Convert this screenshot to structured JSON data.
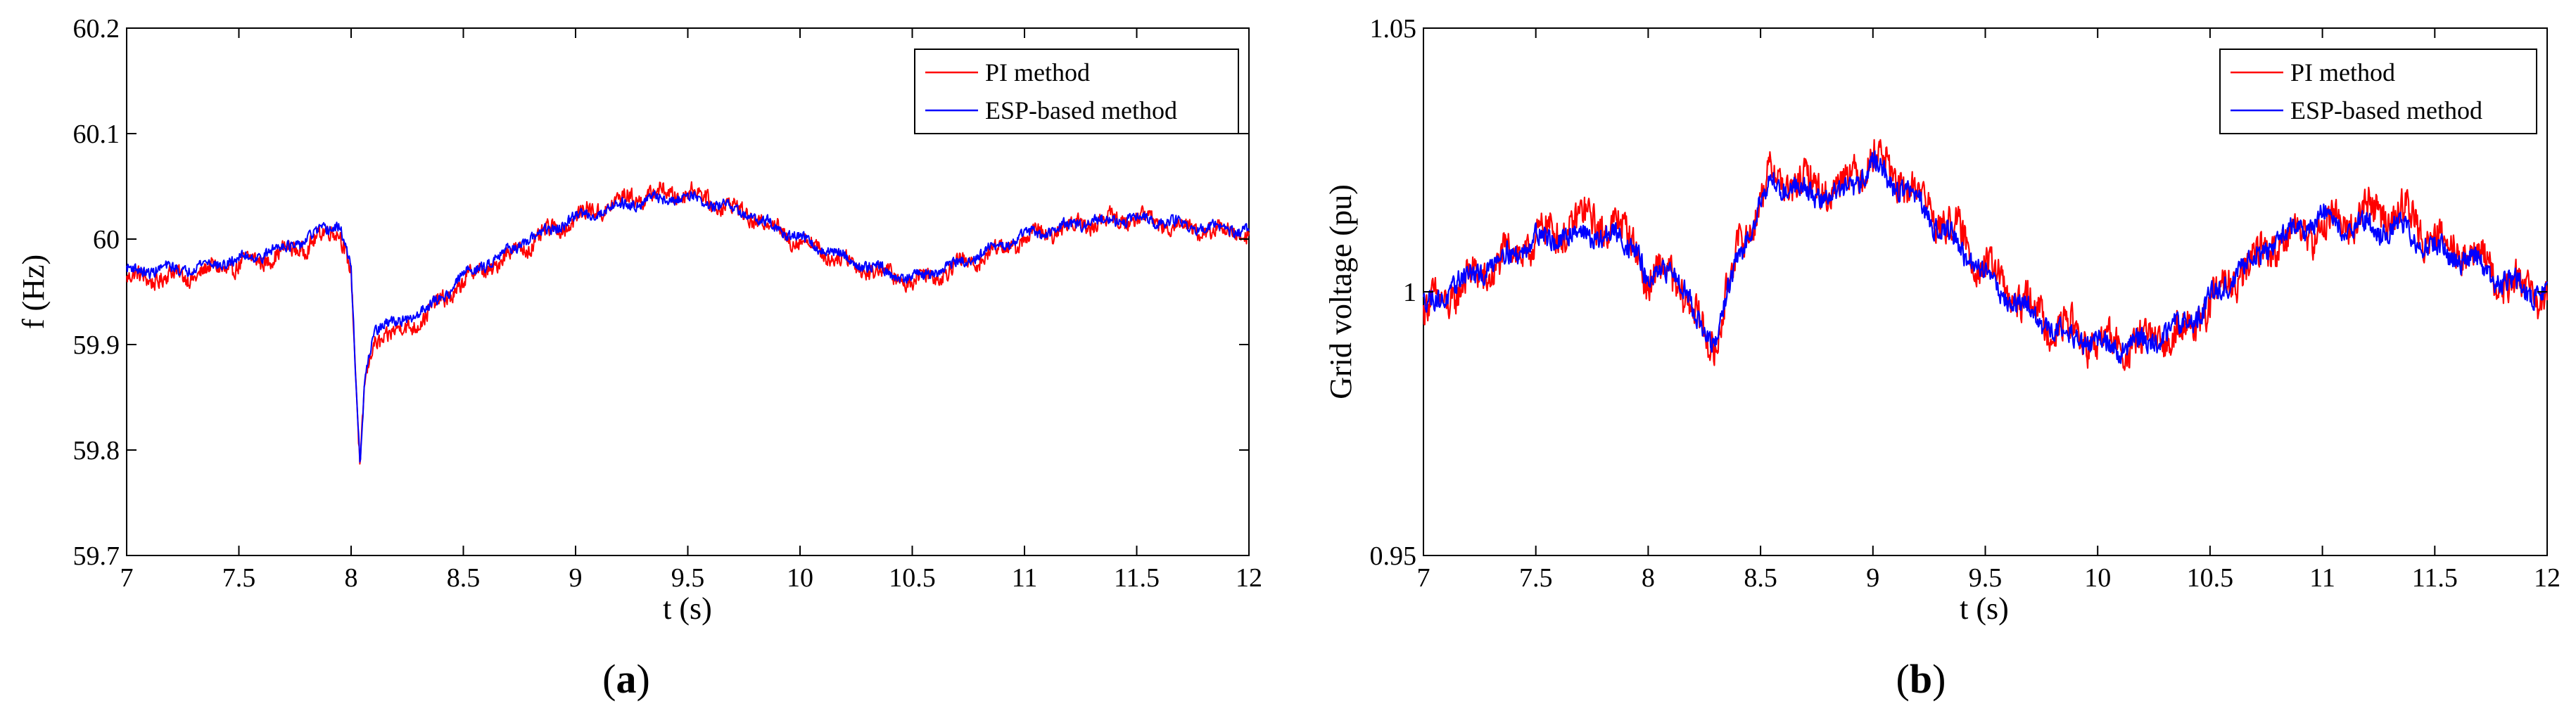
{
  "figure": {
    "panel_a": {
      "caption_open": "(",
      "caption_letter": "a",
      "caption_close": ")"
    },
    "panel_b": {
      "caption_open": "(",
      "caption_letter": "b",
      "caption_close": ")"
    }
  },
  "chart_data": [
    {
      "type": "line",
      "panel": "a",
      "title": "",
      "xlabel": "t (s)",
      "ylabel": "f (Hz)",
      "xlim": [
        7,
        12
      ],
      "ylim": [
        59.7,
        60.2
      ],
      "xticks": [
        7,
        7.5,
        8,
        8.5,
        9,
        9.5,
        10,
        10.5,
        11,
        11.5,
        12
      ],
      "xtick_labels": [
        "7",
        "7.5",
        "8",
        "8.5",
        "9",
        "9.5",
        "10",
        "10.5",
        "11",
        "11.5",
        "12"
      ],
      "yticks": [
        59.7,
        59.8,
        59.9,
        60,
        60.1,
        60.2
      ],
      "ytick_labels": [
        "59.7",
        "59.8",
        "59.9",
        "60",
        "60.1",
        "60.2"
      ],
      "grid": false,
      "legend_position": "top-right",
      "series": [
        {
          "name": "PI method",
          "color": "#ff0000",
          "x": [
            7.0,
            7.25,
            7.5,
            7.75,
            7.95,
            8.0,
            8.02,
            8.04,
            8.06,
            8.1,
            8.2,
            8.35,
            8.5,
            8.75,
            9.0,
            9.25,
            9.5,
            9.75,
            10.0,
            10.25,
            10.5,
            10.75,
            11.0,
            11.25,
            11.5,
            11.75,
            12.0
          ],
          "y": [
            59.962,
            59.965,
            59.975,
            59.99,
            60.01,
            59.97,
            59.87,
            59.775,
            59.86,
            59.905,
            59.91,
            59.93,
            59.96,
            59.99,
            60.02,
            60.04,
            60.045,
            60.025,
            59.998,
            59.975,
            59.96,
            59.978,
            60.0,
            60.015,
            60.02,
            60.01,
            60.005
          ],
          "noise": 0.011
        },
        {
          "name": "ESP-based method",
          "color": "#0000ff",
          "x": [
            7.0,
            7.25,
            7.5,
            7.75,
            7.95,
            8.0,
            8.02,
            8.04,
            8.06,
            8.1,
            8.2,
            8.35,
            8.5,
            8.75,
            9.0,
            9.25,
            9.5,
            9.75,
            10.0,
            10.25,
            10.5,
            10.75,
            11.0,
            11.25,
            11.5,
            11.75,
            12.0
          ],
          "y": [
            59.97,
            59.972,
            59.98,
            59.995,
            60.015,
            59.97,
            59.87,
            59.78,
            59.865,
            59.915,
            59.92,
            59.935,
            59.965,
            59.995,
            60.02,
            60.035,
            60.04,
            60.025,
            60.0,
            59.978,
            59.962,
            59.98,
            60.003,
            60.015,
            60.02,
            60.012,
            60.008
          ],
          "noise": 0.007
        }
      ]
    },
    {
      "type": "line",
      "panel": "b",
      "title": "",
      "xlabel": "t (s)",
      "ylabel": "Grid voltage (pu)",
      "xlim": [
        7,
        12
      ],
      "ylim": [
        0.95,
        1.05
      ],
      "xticks": [
        7,
        7.5,
        8,
        8.5,
        9,
        9.5,
        10,
        10.5,
        11,
        11.5,
        12
      ],
      "xtick_labels": [
        "7",
        "7.5",
        "8",
        "8.5",
        "9",
        "9.5",
        "10",
        "10.5",
        "11",
        "11.5",
        "12"
      ],
      "yticks": [
        0.95,
        1,
        1.05
      ],
      "ytick_labels": [
        "0.95",
        "1",
        "1.05"
      ],
      "grid": false,
      "legend_position": "top-right",
      "series": [
        {
          "name": "PI method",
          "color": "#ff0000",
          "x": [
            7.0,
            7.25,
            7.5,
            7.75,
            7.95,
            8.0,
            8.1,
            8.2,
            8.3,
            8.4,
            8.55,
            8.7,
            8.85,
            9.0,
            9.15,
            9.35,
            9.6,
            9.8,
            10.0,
            10.2,
            10.4,
            10.6,
            10.8,
            11.0,
            11.2,
            11.35,
            11.5,
            11.65,
            11.8,
            12.0
          ],
          "y": [
            0.996,
            1.003,
            1.01,
            1.014,
            1.01,
            1.0,
            1.005,
            0.995,
            0.99,
            1.008,
            1.022,
            1.02,
            1.02,
            1.026,
            1.02,
            1.012,
            1.0,
            0.994,
            0.99,
            0.99,
            0.993,
            1.002,
            1.01,
            1.012,
            1.015,
            1.015,
            1.01,
            1.008,
            1.002,
            0.999
          ],
          "noise": 0.0045
        },
        {
          "name": "ESP-based method",
          "color": "#0000ff",
          "x": [
            7.0,
            7.25,
            7.5,
            7.75,
            7.95,
            8.0,
            8.1,
            8.2,
            8.3,
            8.4,
            8.55,
            8.7,
            8.85,
            9.0,
            9.15,
            9.35,
            9.6,
            9.8,
            10.0,
            10.2,
            10.4,
            10.6,
            10.8,
            11.0,
            11.2,
            11.35,
            11.5,
            11.65,
            11.8,
            12.0
          ],
          "y": [
            0.997,
            1.004,
            1.01,
            1.011,
            1.009,
            1.0,
            1.006,
            0.996,
            0.99,
            1.007,
            1.021,
            1.019,
            1.018,
            1.024,
            1.019,
            1.01,
            0.999,
            0.993,
            0.99,
            0.99,
            0.994,
            1.003,
            1.01,
            1.014,
            1.012,
            1.012,
            1.008,
            1.006,
            1.002,
            0.999
          ],
          "noise": 0.0028
        }
      ]
    }
  ]
}
